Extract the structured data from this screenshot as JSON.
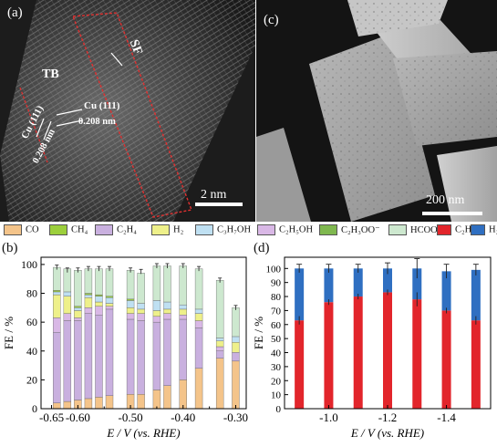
{
  "panel_a": {
    "label": "(a)",
    "annotations": [
      "TB",
      "SF",
      "Cu (111)",
      "Cu (111)",
      "0.208 nm",
      "0.208 nm"
    ],
    "scale_bar": "2 nm"
  },
  "panel_c": {
    "label": "(c)",
    "scale_bar": "200 nm"
  },
  "legend": {
    "items": [
      {
        "label": "CO",
        "color": "#f4c48a"
      },
      {
        "label": "CH₄",
        "color": "#9ccf3c"
      },
      {
        "label": "C₂H₄",
        "color": "#c9b0df"
      },
      {
        "label": "H₂",
        "color": "#eef08a"
      },
      {
        "label": "C₃H₇OH",
        "color": "#bfe0f2"
      },
      {
        "label": "C₂H₅OH",
        "color": "#d9b8e6"
      },
      {
        "label": "C₂H₃OO⁻",
        "color": "#7fb84f"
      },
      {
        "label": "HCOO⁻",
        "color": "#cde8cf"
      },
      {
        "label": "C₂H₄",
        "color": "#e2252b"
      },
      {
        "label": "H₂",
        "color": "#2f6fc1"
      }
    ]
  },
  "chart_data": [
    {
      "id": "b",
      "label": "(b)",
      "type": "bar",
      "stacked": true,
      "x": [
        -0.64,
        -0.62,
        -0.6,
        -0.58,
        -0.56,
        -0.54,
        -0.5,
        -0.48,
        -0.45,
        -0.43,
        -0.4,
        -0.37,
        -0.33,
        -0.3
      ],
      "series": [
        {
          "name": "CO",
          "color": "#f4c48a",
          "values": [
            4,
            5,
            6,
            7,
            8,
            9,
            10,
            10,
            13,
            16,
            20,
            28,
            35,
            33
          ]
        },
        {
          "name": "C₂H₄",
          "color": "#c9b0df",
          "values": [
            49,
            56,
            55,
            59,
            57,
            60,
            52,
            51,
            47,
            46,
            42,
            28,
            5,
            6
          ]
        },
        {
          "name": "C₂H₅OH",
          "color": "#d9b8e6",
          "values": [
            10,
            5,
            2,
            4,
            6,
            2,
            4,
            5,
            4,
            4,
            3,
            5,
            3,
            0
          ]
        },
        {
          "name": "H₂",
          "color": "#eef08a",
          "values": [
            16,
            12,
            5,
            7,
            3,
            2,
            4,
            3,
            4,
            3,
            4,
            5,
            4,
            7
          ]
        },
        {
          "name": "C₃H₇OH",
          "color": "#bfe0f2",
          "values": [
            2,
            3,
            2,
            2,
            4,
            4,
            5,
            4,
            7,
            5,
            3,
            3,
            2,
            4
          ]
        },
        {
          "name": "CH₄",
          "color": "#9ccf3c",
          "values": [
            1,
            0,
            1,
            1,
            1,
            1,
            1,
            0,
            0,
            0,
            0,
            0,
            0,
            0
          ]
        },
        {
          "name": "C₂H₃OO⁻",
          "color": "#7fb84f",
          "values": [
            0,
            0,
            0,
            0,
            0,
            0,
            0,
            0,
            0,
            0,
            0,
            0,
            0,
            0
          ]
        },
        {
          "name": "HCOO⁻",
          "color": "#cde8cf",
          "values": [
            16,
            16,
            25,
            17,
            18,
            19,
            20,
            21,
            24,
            25,
            27,
            28,
            40,
            20
          ]
        }
      ],
      "error_totals": [
        98,
        96,
        96,
        97,
        97,
        97,
        96,
        95,
        99,
        99,
        99,
        97,
        89,
        70
      ],
      "xlabel": "E / V (vs. RHE)",
      "ylabel": "FE / %",
      "xlim": [
        -0.67,
        -0.28
      ],
      "ylim": [
        0,
        105
      ],
      "xticks": [
        "-0.65",
        "-0.60",
        "-0.50",
        "-0.40",
        "-0.30"
      ],
      "xtick_values": [
        -0.65,
        -0.6,
        -0.5,
        -0.4,
        -0.3
      ],
      "xtick_minor": [
        -0.55,
        -0.45,
        -0.35
      ],
      "yticks": [
        "0",
        "20",
        "40",
        "60",
        "80",
        "100"
      ],
      "ytick_values": [
        0,
        20,
        40,
        60,
        80,
        100
      ]
    },
    {
      "id": "d",
      "label": "(d)",
      "type": "bar",
      "stacked": true,
      "x": [
        -0.9,
        -1.0,
        -1.1,
        -1.2,
        -1.3,
        -1.4,
        -1.5
      ],
      "series": [
        {
          "name": "C₂H₄",
          "color": "#e2252b",
          "values": [
            63,
            76,
            80,
            83,
            78,
            70,
            63
          ]
        },
        {
          "name": "H₂",
          "color": "#2f6fc1",
          "values": [
            37,
            24,
            20,
            17,
            22,
            28,
            36
          ]
        }
      ],
      "errors_c2h4": [
        3,
        2,
        2,
        2,
        5,
        2,
        3
      ],
      "errors_total": [
        3,
        3,
        3,
        4,
        7,
        5,
        4
      ],
      "xlabel": "E / V (vs. RHE)",
      "ylabel": "FE / %",
      "xlim": [
        -0.85,
        -1.55
      ],
      "ylim": [
        0,
        108
      ],
      "xticks": [
        "-1.0",
        "-1.2",
        "-1.4"
      ],
      "xtick_values": [
        -1.0,
        -1.2,
        -1.4
      ],
      "yticks": [
        "0",
        "10",
        "20",
        "30",
        "40",
        "50",
        "60",
        "70",
        "80",
        "90",
        "100"
      ],
      "ytick_values": [
        0,
        10,
        20,
        30,
        40,
        50,
        60,
        70,
        80,
        90,
        100
      ]
    }
  ]
}
